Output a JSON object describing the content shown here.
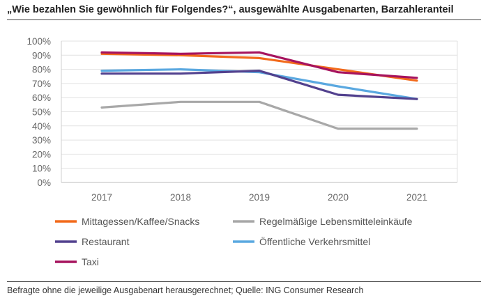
{
  "title": "„Wie bezahlen Sie gewöhnlich für Folgendes?“, ausgewählte Ausgabenarten, Barzahleranteil",
  "footer": "Befragte ohne die jeweilige Ausgabenart herausgerechnet; Quelle: ING Consumer Research",
  "chart_data": {
    "type": "line",
    "title": "„Wie bezahlen Sie gewöhnlich für Folgendes?“, ausgewählte Ausgabenarten, Barzahleranteil",
    "x": [
      "2017",
      "2018",
      "2019",
      "2020",
      "2021"
    ],
    "yticks": [
      "0%",
      "10%",
      "20%",
      "30%",
      "40%",
      "50%",
      "60%",
      "70%",
      "80%",
      "90%",
      "100%"
    ],
    "ylim": [
      0,
      100
    ],
    "grid": true,
    "legend_position": "bottom",
    "series": [
      {
        "name": "Mittagessen/Kaffee/Snacks",
        "color": "#f26a1b",
        "values": [
          91,
          90,
          88,
          80,
          72
        ]
      },
      {
        "name": "Regelmäßige Lebensmitteleinkäufe",
        "color": "#a8a8a8",
        "values": [
          53,
          57,
          57,
          38,
          38
        ]
      },
      {
        "name": "Restaurant",
        "color": "#52418e",
        "values": [
          77,
          77,
          79,
          62,
          59
        ]
      },
      {
        "name": "Öffentliche Verkehrsmittel",
        "color": "#5aa8e0",
        "values": [
          79,
          80,
          78,
          68,
          59
        ]
      },
      {
        "name": "Taxi",
        "color": "#a6135e",
        "values": [
          92,
          91,
          92,
          78,
          74
        ]
      }
    ]
  }
}
